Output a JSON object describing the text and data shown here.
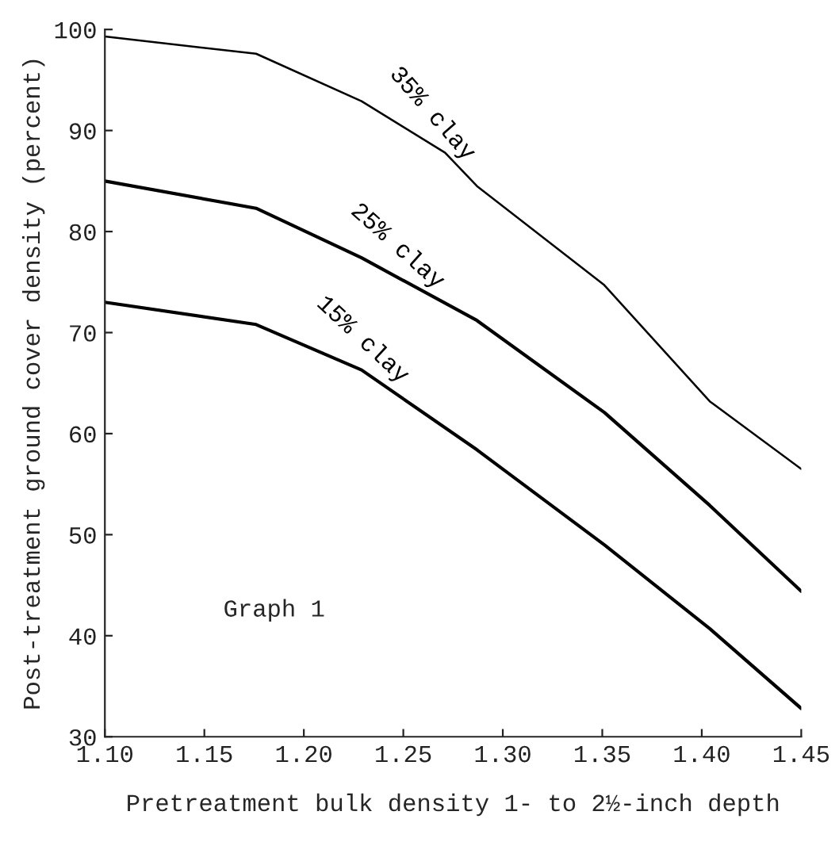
{
  "chart_data": {
    "type": "line",
    "xlabel": "Pretreatment bulk density 1- to 2½-inch depth",
    "ylabel": "Post-treatment ground cover density (percent)",
    "xlim": [
      1.1,
      1.45
    ],
    "xticks": [
      {
        "value": 1.1,
        "label": "1.10"
      },
      1.15,
      {
        "value": 1.2,
        "label": "1.20"
      },
      1.25,
      {
        "value": 1.3,
        "label": "1.30"
      },
      1.35,
      {
        "value": 1.4,
        "label": "1.40"
      },
      1.45
    ],
    "ylim": [
      30,
      100
    ],
    "yticks": [
      30,
      40,
      50,
      60,
      70,
      80,
      90,
      100
    ],
    "grid": false,
    "legend": false,
    "marker": "none",
    "line_style": "solid",
    "annotations": [
      "Graph 1"
    ],
    "series": [
      {
        "name": "35% clay",
        "color": "#000000",
        "x": [
          1.1,
          1.176,
          1.229,
          1.271,
          1.287,
          1.351,
          1.404,
          1.45
        ],
        "values": [
          99.3,
          97.6,
          92.9,
          87.8,
          84.5,
          74.7,
          63.2,
          56.5
        ]
      },
      {
        "name": "25% clay",
        "color": "#000000",
        "x": [
          1.1,
          1.176,
          1.229,
          1.287,
          1.351,
          1.404,
          1.45
        ],
        "values": [
          85.0,
          82.3,
          77.4,
          71.2,
          62.1,
          52.9,
          44.4
        ]
      },
      {
        "name": "15% clay",
        "color": "#000000",
        "x": [
          1.1,
          1.176,
          1.229,
          1.287,
          1.351,
          1.404,
          1.45
        ],
        "values": [
          73.0,
          70.8,
          66.3,
          58.4,
          49.0,
          40.7,
          32.8
        ]
      }
    ]
  }
}
